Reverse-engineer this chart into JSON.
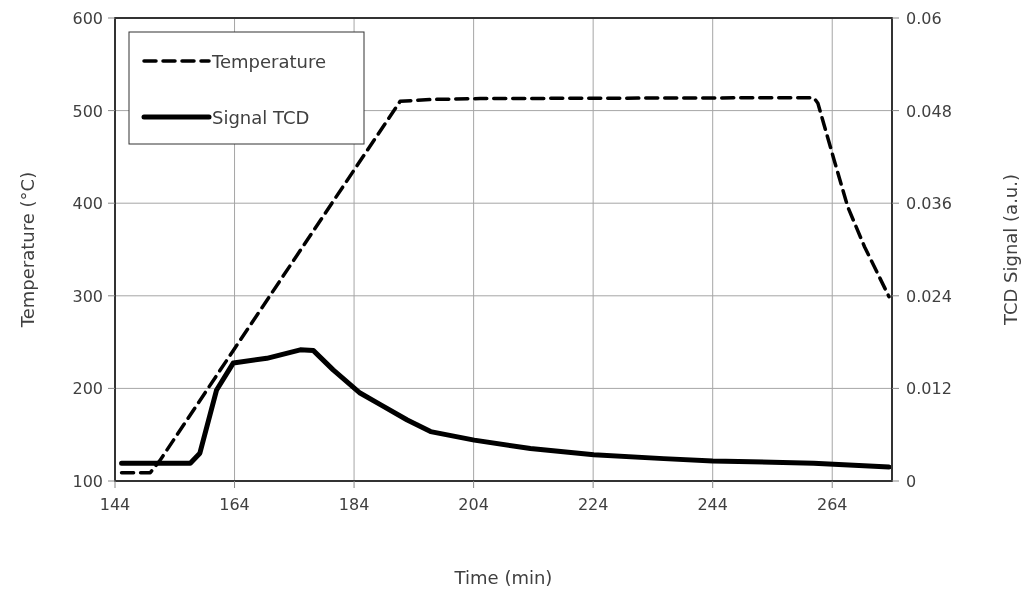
{
  "chart_data": {
    "type": "line",
    "xlabel": "Time (min)",
    "ylabel": "Temperature (°C)",
    "y2label": "TCD Signal (a.u.)",
    "xlim": [
      144,
      274
    ],
    "xticks": [
      144,
      164,
      184,
      204,
      224,
      244,
      264
    ],
    "ylim": [
      100,
      600
    ],
    "yticks": [
      100,
      200,
      300,
      400,
      500,
      600
    ],
    "y2lim": [
      0,
      0.06
    ],
    "y2ticks": [
      0,
      0.012,
      0.024,
      0.036,
      0.048,
      0.06
    ],
    "grid": true,
    "legend": "top left",
    "marker": "none",
    "series": [
      {
        "name": "Temperature",
        "color": "#000000",
        "line_style": "dashed",
        "x": [
          145.1,
          149.9,
          151.5,
          163.8,
          191.7,
          196.8,
          205.1,
          260.9,
          261.6,
          264.3,
          266.6,
          269.4,
          273.5
        ],
        "values": [
          109,
          109,
          122,
          241,
          510,
          512,
          513,
          514,
          508,
          447,
          396,
          353,
          299
        ]
      },
      {
        "name": "Signal TCD",
        "color": "#000000",
        "line_style": "solid",
        "axis": "y2",
        "x": [
          145.1,
          156.6,
          158.2,
          161.0,
          163.8,
          169.4,
          175.0,
          177.2,
          180.5,
          185.0,
          188.4,
          192.9,
          196.8,
          204.1,
          213.5,
          224.1,
          235.8,
          244,
          260.9,
          273.5
        ],
        "values": [
          0.0023,
          0.0023,
          0.0036,
          0.0118,
          0.0153,
          0.0159,
          0.017,
          0.0169,
          0.0144,
          0.0114,
          0.0099,
          0.0079,
          0.0064,
          0.0053,
          0.0042,
          0.0034,
          0.0029,
          0.0026,
          0.0023,
          0.0018
        ]
      }
    ]
  }
}
